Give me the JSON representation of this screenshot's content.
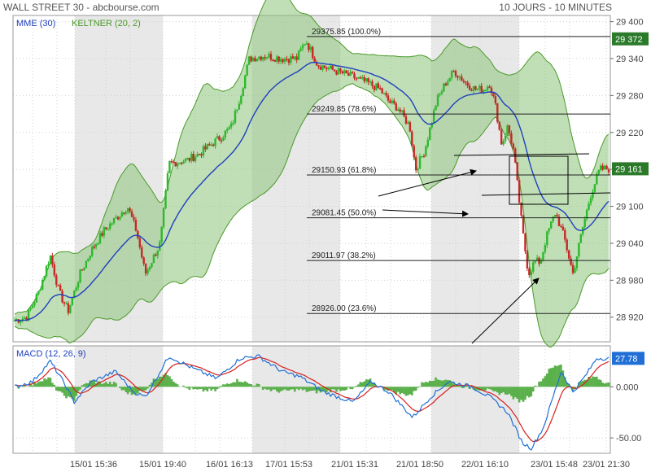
{
  "header": {
    "title": "WALL STREET 30 - abcbourse.com",
    "period": "10 JOURS - 10 MINUTES"
  },
  "colors": {
    "up": "#2db82d",
    "down": "#c62828",
    "mme": "#1f3fbf",
    "keltner_line": "#4a9a2a",
    "keltner_fill": "#8cc47a",
    "macd_line": "#1f6fd6",
    "signal_line": "#d62020",
    "hist": "#5ab04a",
    "shade": "#e8e8e8",
    "last_badge": "#2a7a2a"
  },
  "chart_data": [
    {
      "type": "candlestick",
      "title": "",
      "legend": [
        {
          "name": "MME (30)",
          "color": "#1f3fbf"
        },
        {
          "name": "KELTNER (20, 2)",
          "color": "#4a9a2a"
        }
      ],
      "ylim": [
        28880,
        29410
      ],
      "y_ticks": [
        "29 400",
        "29 340",
        "29 280",
        "29 220",
        "29 160",
        "29 100",
        "29 040",
        "28 980",
        "28 920"
      ],
      "y_tick_values": [
        29400,
        29340,
        29280,
        29220,
        29160,
        29100,
        29040,
        28980,
        28920
      ],
      "x_ticks": [
        "15/01 15:36",
        "15/01 19:40",
        "16/01 16:13",
        "17/01 15:53",
        "21/01 15:31",
        "21/01 18:50",
        "22/01 16:10",
        "23/01 15:48",
        "23/01 21:30"
      ],
      "price_path": [
        [
          0,
          28915
        ],
        [
          0.02,
          28920
        ],
        [
          0.04,
          28960
        ],
        [
          0.06,
          29020
        ],
        [
          0.075,
          28960
        ],
        [
          0.09,
          28930
        ],
        [
          0.11,
          28990
        ],
        [
          0.13,
          29030
        ],
        [
          0.15,
          29060
        ],
        [
          0.17,
          29080
        ],
        [
          0.19,
          29100
        ],
        [
          0.205,
          29060
        ],
        [
          0.22,
          28990
        ],
        [
          0.245,
          29040
        ],
        [
          0.26,
          29170
        ],
        [
          0.29,
          29175
        ],
        [
          0.31,
          29185
        ],
        [
          0.33,
          29200
        ],
        [
          0.35,
          29215
        ],
        [
          0.365,
          29230
        ],
        [
          0.38,
          29280
        ],
        [
          0.395,
          29340
        ],
        [
          0.42,
          29345
        ],
        [
          0.45,
          29340
        ],
        [
          0.475,
          29340
        ],
        [
          0.49,
          29370
        ],
        [
          0.51,
          29330
        ],
        [
          0.54,
          29320
        ],
        [
          0.57,
          29310
        ],
        [
          0.595,
          29300
        ],
        [
          0.615,
          29290
        ],
        [
          0.63,
          29270
        ],
        [
          0.645,
          29260
        ],
        [
          0.665,
          29230
        ],
        [
          0.675,
          29160
        ],
        [
          0.69,
          29190
        ],
        [
          0.71,
          29270
        ],
        [
          0.725,
          29300
        ],
        [
          0.74,
          29320
        ],
        [
          0.76,
          29300
        ],
        [
          0.775,
          29290
        ],
        [
          0.79,
          29290
        ],
        [
          0.8,
          29300
        ],
        [
          0.81,
          29260
        ],
        [
          0.82,
          29200
        ],
        [
          0.83,
          29230
        ],
        [
          0.84,
          29190
        ],
        [
          0.855,
          29060
        ],
        [
          0.865,
          28990
        ],
        [
          0.875,
          29010
        ],
        [
          0.885,
          29010
        ],
        [
          0.895,
          29050
        ],
        [
          0.91,
          29090
        ],
        [
          0.925,
          29050
        ],
        [
          0.94,
          28990
        ],
        [
          0.955,
          29060
        ],
        [
          0.97,
          29120
        ],
        [
          0.985,
          29160
        ],
        [
          1,
          29161
        ]
      ],
      "fib_levels": [
        {
          "label": "29375.85  (100.0%)",
          "value": 29375.85
        },
        {
          "label": "29249.85  (78.6%)",
          "value": 29249.85
        },
        {
          "label": "29150.93  (61.8%)",
          "value": 29150.93
        },
        {
          "label": "29081.45  (50.0%)",
          "value": 29081.45
        },
        {
          "label": "29011.97  (38.2%)",
          "value": 29011.97
        },
        {
          "label": "28926.00  (23.6%)",
          "value": 28926.0
        }
      ],
      "last_price_labels": [
        {
          "text": "29 372",
          "value": 29372
        },
        {
          "text": "29 161",
          "value": 29161
        }
      ]
    },
    {
      "type": "line",
      "title": "",
      "legend": [
        {
          "name": "MACD (12, 26, 9)",
          "color": "#1f6fd6"
        }
      ],
      "ylim": [
        -65,
        40
      ],
      "y_ticks": [
        "0.000",
        "-50.00"
      ],
      "y_tick_values": [
        0,
        -50
      ],
      "last_value_label": {
        "text": "27.78",
        "value": 27.78
      },
      "macd_path": [
        [
          0,
          0
        ],
        [
          0.03,
          5
        ],
        [
          0.06,
          25
        ],
        [
          0.085,
          2
        ],
        [
          0.1,
          -15
        ],
        [
          0.13,
          5
        ],
        [
          0.17,
          15
        ],
        [
          0.2,
          -5
        ],
        [
          0.22,
          -10
        ],
        [
          0.26,
          30
        ],
        [
          0.3,
          18
        ],
        [
          0.34,
          8
        ],
        [
          0.38,
          28
        ],
        [
          0.41,
          30
        ],
        [
          0.45,
          15
        ],
        [
          0.48,
          10
        ],
        [
          0.52,
          -5
        ],
        [
          0.57,
          -15
        ],
        [
          0.6,
          5
        ],
        [
          0.63,
          -5
        ],
        [
          0.67,
          -30
        ],
        [
          0.7,
          -10
        ],
        [
          0.73,
          5
        ],
        [
          0.77,
          0
        ],
        [
          0.8,
          -10
        ],
        [
          0.83,
          -25
        ],
        [
          0.855,
          -55
        ],
        [
          0.87,
          -60
        ],
        [
          0.89,
          -40
        ],
        [
          0.92,
          15
        ],
        [
          0.94,
          -5
        ],
        [
          0.96,
          10
        ],
        [
          0.98,
          28
        ],
        [
          1,
          27.78
        ]
      ]
    }
  ]
}
